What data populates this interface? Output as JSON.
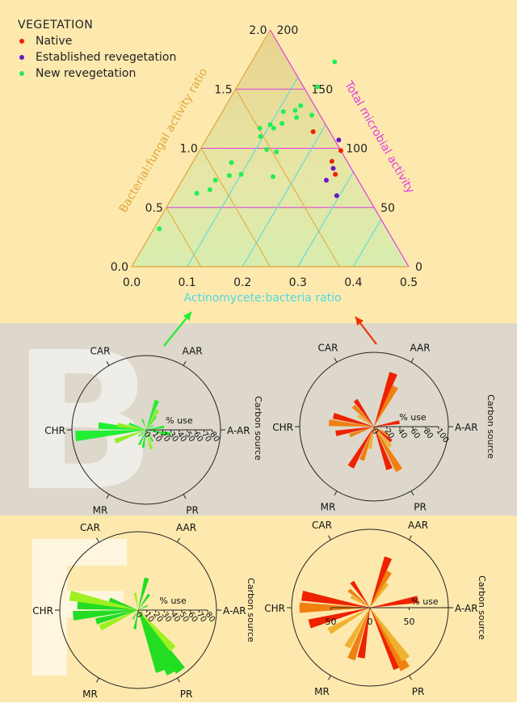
{
  "colors": {
    "band_top": "#fde9ae",
    "band_mid": "#ddd8cb",
    "band_bot": "#fde9ae",
    "triangle_edge": "#e0a63a",
    "bf_axis": "#e0a63a",
    "total_axis": "#e03ce0",
    "act_axis": "#4fd8e0",
    "native": "#ee2200",
    "established": "#6a16c8",
    "new": "#22ee55"
  },
  "panel_letters": [
    "B",
    "F"
  ],
  "legend": {
    "title": "VEGETATION",
    "items": [
      {
        "label": "Native",
        "color": "#ee2200"
      },
      {
        "label": "Established revegetation",
        "color": "#6a16c8"
      },
      {
        "label": "New revegetation",
        "color": "#22ee55"
      }
    ]
  },
  "chart_data": [
    {
      "type": "scatter",
      "subtype": "ternary",
      "axes": {
        "x": {
          "label": "Actinomycete:bacteria ratio",
          "range": [
            0,
            0.5
          ],
          "ticks": [
            "0.0",
            "0.1",
            "0.2",
            "0.3",
            "0.4",
            "0.5"
          ]
        },
        "left": {
          "label": "Bacterial:fungal activity ratio",
          "range": [
            0,
            2
          ],
          "ticks": [
            "0.0",
            "0.5",
            "1.0",
            "1.5",
            "2.0"
          ]
        },
        "right": {
          "label": "Total microbial activity",
          "range": [
            0,
            200
          ],
          "ticks": [
            "0",
            "50",
            "100",
            "150",
            "200"
          ]
        }
      },
      "series": [
        {
          "name": "Native",
          "points": [
            [
              0.185,
              1.14
            ],
            [
              0.255,
              0.98
            ],
            [
              0.25,
              0.89
            ],
            [
              0.27,
              0.78
            ]
          ]
        },
        {
          "name": "Established revegetation",
          "points": [
            [
              0.24,
              1.07
            ],
            [
              0.26,
              0.83
            ],
            [
              0.26,
              0.73
            ],
            [
              0.295,
              0.6
            ]
          ]
        },
        {
          "name": "New revegetation",
          "points": [
            [
              0.15,
              1.73
            ],
            [
              0.145,
              1.52
            ],
            [
              0.13,
              1.32
            ],
            [
              0.14,
              1.26
            ],
            [
              0.11,
              1.31
            ],
            [
              0.1,
              1.2
            ],
            [
              0.11,
              1.17
            ],
            [
              0.165,
              1.28
            ],
            [
              0.085,
              1.17
            ],
            [
              0.095,
              1.1
            ],
            [
              0.12,
              1.21
            ],
            [
              0.14,
              0.97
            ],
            [
              0.07,
              0.88
            ],
            [
              0.12,
              0.99
            ],
            [
              0.08,
              0.77
            ],
            [
              0.06,
              0.73
            ],
            [
              0.06,
              0.65
            ],
            [
              0.04,
              0.62
            ],
            [
              0.1,
              0.78
            ],
            [
              0.16,
              0.76
            ],
            [
              0.01,
              0.32
            ],
            [
              0.135,
              1.36
            ]
          ]
        }
      ],
      "grid": true
    },
    {
      "type": "rose",
      "subtype": "polar-bar",
      "categories": [
        "CAR",
        "AAR",
        "A-AR",
        "PR",
        "MR",
        "CHR"
      ],
      "side_label": "Carbon source",
      "radial_label": "% use",
      "radial_ticks": [
        "0",
        "10",
        "20",
        "30",
        "40",
        "50",
        "60",
        "70",
        "80"
      ],
      "rmax": 90,
      "series": [
        {
          "color": "#22ee33",
          "bars": [
            {
              "angle": 70,
              "value": 38
            },
            {
              "angle": 55,
              "value": 20
            },
            {
              "angle": 35,
              "value": 10
            },
            {
              "angle": 10,
              "value": 22
            },
            {
              "angle": -10,
              "value": 30
            },
            {
              "angle": -60,
              "value": 16
            },
            {
              "angle": -100,
              "value": 22
            },
            {
              "angle": -115,
              "value": 20
            },
            {
              "angle": -140,
              "value": 12
            },
            {
              "angle": 175,
              "value": 58
            },
            {
              "angle": 185,
              "value": 86
            },
            {
              "angle": 160,
              "value": 22
            },
            {
              "angle": 110,
              "value": 14
            }
          ]
        },
        {
          "color": "#8ef020",
          "bars": [
            {
              "angle": 200,
              "value": 40
            },
            {
              "angle": 170,
              "value": 35
            },
            {
              "angle": 60,
              "value": 28
            },
            {
              "angle": -75,
              "value": 24
            }
          ]
        }
      ]
    },
    {
      "type": "rose",
      "subtype": "polar-bar",
      "categories": [
        "CAR",
        "AAR",
        "A-AR",
        "PR",
        "MR",
        "CHR"
      ],
      "side_label": "Carbon source",
      "radial_label": "% use",
      "radial_ticks": [
        "0",
        "20",
        "40",
        "60",
        "80",
        "100"
      ],
      "rmax": 115,
      "series": [
        {
          "color": "#ee2200",
          "bars": [
            {
              "angle": 70,
              "value": 88
            },
            {
              "angle": 125,
              "value": 50
            },
            {
              "angle": 165,
              "value": 65
            },
            {
              "angle": 190,
              "value": 60
            },
            {
              "angle": 240,
              "value": 72
            },
            {
              "angle": 290,
              "value": 70
            },
            {
              "angle": 320,
              "value": 35
            },
            {
              "angle": 10,
              "value": 40
            }
          ]
        },
        {
          "color": "#f08010",
          "bars": [
            {
              "angle": 62,
              "value": 70
            },
            {
              "angle": 135,
              "value": 45
            },
            {
              "angle": 175,
              "value": 70
            },
            {
              "angle": 200,
              "value": 40
            },
            {
              "angle": 250,
              "value": 55
            },
            {
              "angle": 300,
              "value": 78
            },
            {
              "angle": 330,
              "value": 28
            }
          ]
        },
        {
          "color": "#f0b030",
          "bars": [
            {
              "angle": 145,
              "value": 30
            },
            {
              "angle": 260,
              "value": 35
            },
            {
              "angle": 310,
              "value": 40
            }
          ]
        }
      ]
    },
    {
      "type": "rose",
      "subtype": "polar-bar",
      "categories": [
        "CAR",
        "AAR",
        "A-AR",
        "PR",
        "MR",
        "CHR"
      ],
      "side_label": "Carbon source",
      "radial_label": "% use",
      "radial_ticks": [
        "0",
        "10",
        "20",
        "30",
        "40",
        "50",
        "60",
        "70",
        "80"
      ],
      "rmax": 90,
      "series": [
        {
          "color": "#22dd22",
          "bars": [
            {
              "angle": 75,
              "value": 38
            },
            {
              "angle": 55,
              "value": 22
            },
            {
              "angle": 25,
              "value": 12
            },
            {
              "angle": -55,
              "value": 85
            },
            {
              "angle": -62,
              "value": 82
            },
            {
              "angle": -70,
              "value": 75
            },
            {
              "angle": -100,
              "value": 22
            },
            {
              "angle": -120,
              "value": 12
            },
            {
              "angle": 175,
              "value": 70
            },
            {
              "angle": 185,
              "value": 75
            },
            {
              "angle": 195,
              "value": 50
            },
            {
              "angle": 160,
              "value": 35
            }
          ]
        },
        {
          "color": "#9ef020",
          "bars": [
            {
              "angle": 168,
              "value": 80
            },
            {
              "angle": 205,
              "value": 48
            },
            {
              "angle": -48,
              "value": 60
            },
            {
              "angle": 100,
              "value": 20
            }
          ]
        }
      ]
    },
    {
      "type": "rose",
      "subtype": "polar-bar",
      "categories": [
        "CAR",
        "AAR",
        "A-AR",
        "PR",
        "MR",
        "CHR"
      ],
      "side_label": "Carbon source",
      "radial_label": "% use",
      "radial_ticks": [
        "50",
        "0",
        "50"
      ],
      "rmax": 100,
      "series": [
        {
          "color": "#ee2200",
          "bars": [
            {
              "angle": 70,
              "value": 68
            },
            {
              "angle": 125,
              "value": 40
            },
            {
              "angle": 170,
              "value": 88
            },
            {
              "angle": 195,
              "value": 80
            },
            {
              "angle": 260,
              "value": 65
            },
            {
              "angle": 295,
              "value": 85
            },
            {
              "angle": 10,
              "value": 62
            }
          ]
        },
        {
          "color": "#f08010",
          "bars": [
            {
              "angle": 62,
              "value": 52
            },
            {
              "angle": 140,
              "value": 35
            },
            {
              "angle": 180,
              "value": 90
            },
            {
              "angle": 250,
              "value": 70
            },
            {
              "angle": 300,
              "value": 90
            }
          ]
        },
        {
          "color": "#f0b030",
          "bars": [
            {
              "angle": 55,
              "value": 38
            },
            {
              "angle": 150,
              "value": 28
            },
            {
              "angle": 210,
              "value": 60
            },
            {
              "angle": 240,
              "value": 58
            },
            {
              "angle": 305,
              "value": 80
            }
          ]
        }
      ]
    }
  ]
}
